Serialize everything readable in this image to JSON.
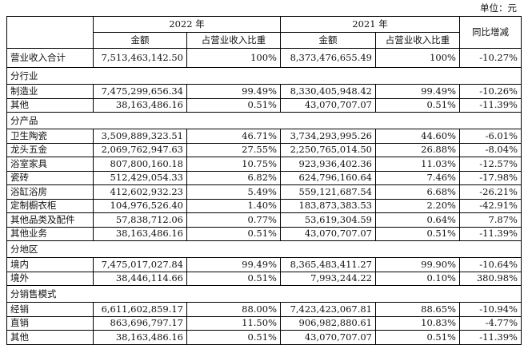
{
  "unit_label": "单位：元",
  "header": {
    "year_2022": "2022 年",
    "year_2021": "2021 年",
    "amount": "金额",
    "ratio": "占营业收入比重",
    "yoy": "同比增减"
  },
  "total": {
    "label": "营业收入合计",
    "a2022": "7,513,463,142.50",
    "r2022": "100%",
    "a2021": "8,373,476,655.49",
    "r2021": "100%",
    "yoy": "-10.27%"
  },
  "sections": [
    {
      "title": "分行业",
      "rows": [
        {
          "label": "制造业",
          "a2022": "7,475,299,656.34",
          "r2022": "99.49%",
          "a2021": "8,330,405,948.42",
          "r2021": "99.49%",
          "yoy": "-10.26%"
        },
        {
          "label": "其他",
          "a2022": "38,163,486.16",
          "r2022": "0.51%",
          "a2021": "43,070,707.07",
          "r2021": "0.51%",
          "yoy": "-11.39%"
        }
      ]
    },
    {
      "title": "分产品",
      "rows": [
        {
          "label": "卫生陶瓷",
          "a2022": "3,509,889,323.51",
          "r2022": "46.71%",
          "a2021": "3,734,293,995.26",
          "r2021": "44.60%",
          "yoy": "-6.01%"
        },
        {
          "label": "龙头五金",
          "a2022": "2,069,762,947.63",
          "r2022": "27.55%",
          "a2021": "2,250,765,014.50",
          "r2021": "26.88%",
          "yoy": "-8.04%"
        },
        {
          "label": "浴室家具",
          "a2022": "807,800,160.18",
          "r2022": "10.75%",
          "a2021": "923,936,402.36",
          "r2021": "11.03%",
          "yoy": "-12.57%"
        },
        {
          "label": "瓷砖",
          "a2022": "512,429,054.33",
          "r2022": "6.82%",
          "a2021": "624,796,160.64",
          "r2021": "7.46%",
          "yoy": "-17.98%"
        },
        {
          "label": "浴缸浴房",
          "a2022": "412,602,932.23",
          "r2022": "5.49%",
          "a2021": "559,121,687.54",
          "r2021": "6.68%",
          "yoy": "-26.21%"
        },
        {
          "label": "定制橱衣柜",
          "a2022": "104,976,526.40",
          "r2022": "1.40%",
          "a2021": "183,873,383.53",
          "r2021": "2.20%",
          "yoy": "-42.91%"
        },
        {
          "label": "其他品类及配件",
          "a2022": "57,838,712.06",
          "r2022": "0.77%",
          "a2021": "53,619,304.59",
          "r2021": "0.64%",
          "yoy": "7.87%"
        },
        {
          "label": "其他业务",
          "a2022": "38,163,486.16",
          "r2022": "0.51%",
          "a2021": "43,070,707.07",
          "r2021": "0.51%",
          "yoy": "-11.39%"
        }
      ]
    },
    {
      "title": "分地区",
      "rows": [
        {
          "label": "境内",
          "a2022": "7,475,017,027.84",
          "r2022": "99.49%",
          "a2021": "8,365,483,411.27",
          "r2021": "99.90%",
          "yoy": "-10.64%"
        },
        {
          "label": "境外",
          "a2022": "38,446,114.66",
          "r2022": "0.51%",
          "a2021": "7,993,244.22",
          "r2021": "0.10%",
          "yoy": "380.98%"
        }
      ]
    },
    {
      "title": "分销售模式",
      "rows": [
        {
          "label": "经销",
          "a2022": "6,611,602,859.17",
          "r2022": "88.00%",
          "a2021": "7,423,423,067.81",
          "r2021": "88.65%",
          "yoy": "-10.94%"
        },
        {
          "label": "直销",
          "a2022": "863,696,797.17",
          "r2022": "11.50%",
          "a2021": "906,982,880.61",
          "r2021": "10.83%",
          "yoy": "-4.77%"
        },
        {
          "label": "其他",
          "a2022": "38,163,486.16",
          "r2022": "0.51%",
          "a2021": "43,070,707.07",
          "r2021": "0.51%",
          "yoy": "-11.39%"
        }
      ]
    }
  ]
}
